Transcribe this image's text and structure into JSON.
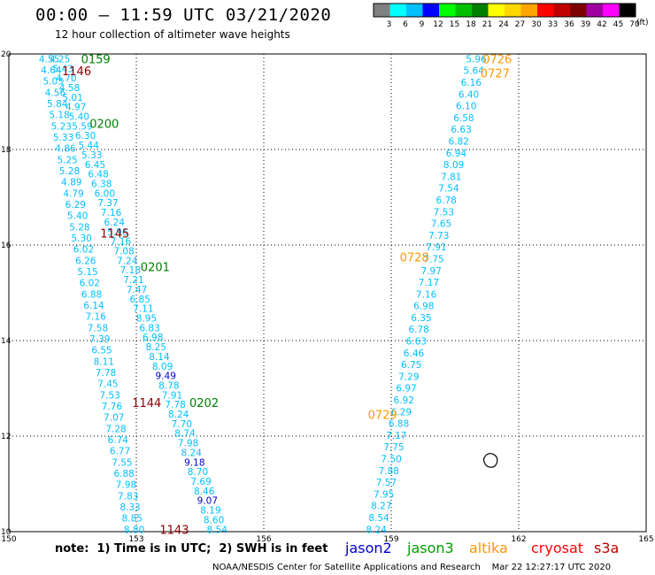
{
  "header": {
    "title": "00:00 – 11:59 UTC 03/21/2020",
    "subtitle": "12 hour collection of altimeter wave heights"
  },
  "legend": {
    "unit": "(ft)",
    "bins": [
      {
        "label": "3",
        "color": "#808080"
      },
      {
        "label": "6",
        "color": "#00ffff"
      },
      {
        "label": "9",
        "color": "#00bfff"
      },
      {
        "label": "12",
        "color": "#0000ff"
      },
      {
        "label": "15",
        "color": "#00ff00"
      },
      {
        "label": "18",
        "color": "#00c000"
      },
      {
        "label": "21",
        "color": "#008000"
      },
      {
        "label": "24",
        "color": "#ffff00"
      },
      {
        "label": "27",
        "color": "#ffd700"
      },
      {
        "label": "30",
        "color": "#ffa500"
      },
      {
        "label": "33",
        "color": "#ff0000"
      },
      {
        "label": "36",
        "color": "#c00000"
      },
      {
        "label": "39",
        "color": "#800000"
      },
      {
        "label": "42",
        "color": "#a000a0"
      },
      {
        "label": "45",
        "color": "#ff00ff"
      },
      {
        "label": "70",
        "color": "#000000"
      }
    ]
  },
  "map": {
    "lon_ticks": [
      "150",
      "153",
      "156",
      "159",
      "162",
      "165"
    ],
    "lat_ticks": [
      "20",
      "18",
      "16",
      "14",
      "12",
      "10"
    ],
    "lon_range": [
      150,
      165
    ],
    "lat_range": [
      10,
      20
    ]
  },
  "colors": {
    "cyan": "#00bfff",
    "blue": "#0000cd",
    "dark_red": "#8b0000",
    "green": "#008000",
    "orange": "#ff9900"
  },
  "tracks": [
    {
      "name": "track-a",
      "start": [
        150.95,
        19.9
      ],
      "end": [
        152.95,
        10.05
      ],
      "color": "#00bfff",
      "values": [
        "4.55",
        "4.64",
        "5.03",
        "4.56",
        "5.84",
        "5.18",
        "5.23",
        "5.33",
        "4.86",
        "5.25",
        "5.28",
        "4.89",
        "4.79",
        "6.29",
        "5.40",
        "5.28",
        "5.30",
        "6.02",
        "6.26",
        "5.15",
        "6.02",
        "6.88",
        "6.14",
        "7.16",
        "7.58",
        "7.39",
        "6.55",
        "8.11",
        "7.78",
        "7.45",
        "7.53",
        "7.76",
        "7.07",
        "7.28",
        "6.74",
        "6.77",
        "7.55",
        "6.88",
        "7.98",
        "7.83",
        "8.33",
        "8.85",
        "8.80"
      ],
      "highlights": {}
    },
    {
      "name": "track-b",
      "start": [
        151.2,
        19.9
      ],
      "end": [
        154.9,
        10.05
      ],
      "color": "#00bfff",
      "values": [
        "4.25",
        "5.43",
        "4.70",
        "4.58",
        "5.01",
        "4.97",
        "5.40",
        "5.59",
        "6.30",
        "5.44",
        "5.33",
        "6.45",
        "6.48",
        "6.38",
        "6.00",
        "7.37",
        "7.16",
        "6.24",
        "5.96",
        "7.16",
        "7.08",
        "7.24",
        "7.18",
        "7.21",
        "7.47",
        "6.85",
        "7.11",
        "8.95",
        "6.83",
        "6.98",
        "8.25",
        "8.14",
        "8.09",
        "9.49",
        "8.78",
        "7.91",
        "7.78",
        "8.24",
        "7.70",
        "8.74",
        "7.98",
        "8.24",
        "9.18",
        "8.70",
        "7.69",
        "8.46",
        "9.07",
        "8.19",
        "8.60",
        "8.54"
      ],
      "highlights": {
        "33": "#0000cd",
        "42": "#0000cd",
        "46": "#0000cd"
      }
    },
    {
      "name": "track-c",
      "start": [
        161.0,
        19.9
      ],
      "end": [
        158.65,
        10.05
      ],
      "color": "#00bfff",
      "values": [
        "5.96",
        "5.64",
        "6.16",
        "6.40",
        "6.10",
        "6.58",
        "6.63",
        "6.82",
        "6.94",
        "8.09",
        "7.81",
        "7.54",
        "6.78",
        "7.53",
        "7.65",
        "7.73",
        "7.91",
        "7.75",
        "7.97",
        "7.17",
        "7.16",
        "6.98",
        "6.35",
        "6.78",
        "6.63",
        "6.46",
        "6.75",
        "7.29",
        "6.97",
        "6.92",
        "6.29",
        "6.88",
        "7.17",
        "7.75",
        "7.50",
        "7.88",
        "7.57",
        "7.95",
        "8.27",
        "8.54",
        "8.24"
      ],
      "highlights": {}
    }
  ],
  "time_labels": [
    {
      "text": "0159",
      "lon": 151.7,
      "lat": 19.9,
      "color": "#008000"
    },
    {
      "text": "1146",
      "lon": 151.25,
      "lat": 19.65,
      "color": "#8b0000"
    },
    {
      "text": "0200",
      "lon": 151.9,
      "lat": 18.55,
      "color": "#008000"
    },
    {
      "text": "1145",
      "lon": 152.15,
      "lat": 16.25,
      "color": "#8b0000"
    },
    {
      "text": "0201",
      "lon": 153.1,
      "lat": 15.55,
      "color": "#008000"
    },
    {
      "text": "1144",
      "lon": 152.9,
      "lat": 12.7,
      "color": "#8b0000"
    },
    {
      "text": "0202",
      "lon": 154.25,
      "lat": 12.7,
      "color": "#008000"
    },
    {
      "text": "1143",
      "lon": 153.55,
      "lat": 10.05,
      "color": "#8b0000"
    },
    {
      "text": "0726",
      "lon": 161.15,
      "lat": 19.9,
      "color": "#ff9900"
    },
    {
      "text": "0727",
      "lon": 161.1,
      "lat": 19.6,
      "color": "#ff9900"
    },
    {
      "text": "0728",
      "lon": 159.2,
      "lat": 15.75,
      "color": "#ff9900"
    },
    {
      "text": "0729",
      "lon": 158.45,
      "lat": 12.45,
      "color": "#ff9900"
    }
  ],
  "island": {
    "name": "island",
    "lon": 161.3,
    "lat": 11.48
  },
  "footer": {
    "note": "note:  1) Time is in UTC;  2) SWH is in feet",
    "credit": "NOAA/NESDIS Center for Satellite Applications and Research    Mar 22 12:27:17 UTC 2020",
    "satellites": [
      {
        "label": "jason2",
        "color": "#0000cd"
      },
      {
        "label": "jason3",
        "color": "#00a000"
      },
      {
        "label": "altika",
        "color": "#ff9900"
      },
      {
        "label": "cryosat",
        "color": "#ff0000"
      },
      {
        "label": "s3a",
        "color": "#c00000"
      }
    ]
  }
}
